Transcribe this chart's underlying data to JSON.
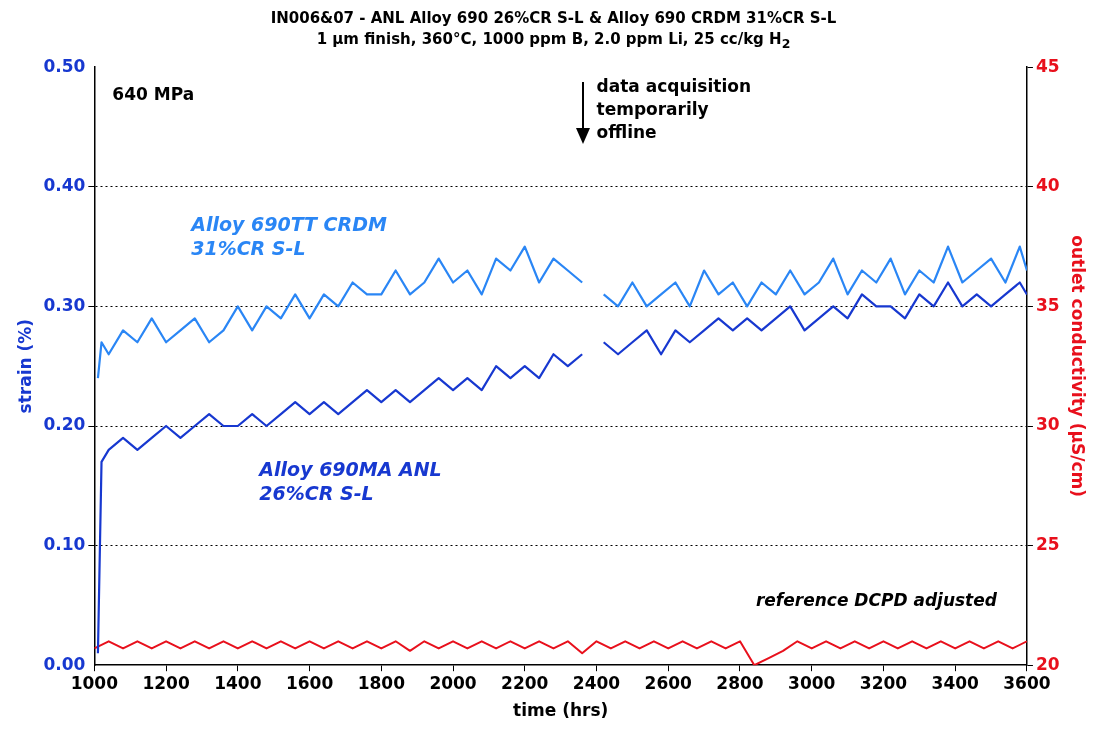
{
  "chart_data": {
    "type": "line",
    "title": "IN006&07 - ANL Alloy 690 26%CR S-L & Alloy 690 CRDM 31%CR S-L",
    "subtitle": "1 µm finish, 360°C, 1000 ppm B, 2.0 ppm Li, 25 cc/kg H$_{2}$",
    "xlabel": "time (hrs)",
    "ylabel": "strain (%)",
    "y2label": "outlet conductivity (µS/cm)",
    "xlim": [
      1000,
      3600
    ],
    "xticks": [
      1000,
      1200,
      1400,
      1600,
      1800,
      2000,
      2200,
      2400,
      2600,
      2800,
      3000,
      3200,
      3400,
      3600
    ],
    "ylim": [
      0,
      0.5
    ],
    "yticks": [
      {
        "value": 0,
        "label": "0.00"
      },
      {
        "value": 0.1,
        "label": "0.10"
      },
      {
        "value": 0.2,
        "label": "0.20"
      },
      {
        "value": 0.3,
        "label": "0.30"
      },
      {
        "value": 0.4,
        "label": "0.40"
      },
      {
        "value": 0.5,
        "label": "0.50"
      }
    ],
    "y2lim": [
      20,
      45
    ],
    "y2ticks": [
      20,
      25,
      30,
      35,
      40,
      45
    ],
    "grid": "y",
    "legend": false,
    "marker": "none",
    "annotations": [
      "640 MPa",
      "data acquisition temporarily offline",
      "reference DCPD adjusted"
    ],
    "series": [
      {
        "name": "Alloy 690TT CRDM 31%CR S-L",
        "color": "#2a86f5",
        "x": [
          1010,
          1020,
          1040,
          1080,
          1120,
          1160,
          1200,
          1240,
          1280,
          1320,
          1360,
          1400,
          1440,
          1480,
          1520,
          1560,
          1600,
          1640,
          1680,
          1720,
          1760,
          1800,
          1840,
          1880,
          1920,
          1960,
          2000,
          2040,
          2080,
          2120,
          2160,
          2200,
          2240,
          2280,
          2320,
          2360,
          2390,
          2420,
          2460,
          2500,
          2540,
          2580,
          2620,
          2660,
          2700,
          2740,
          2780,
          2820,
          2860,
          2900,
          2940,
          2980,
          3020,
          3060,
          3100,
          3140,
          3180,
          3220,
          3260,
          3300,
          3340,
          3380,
          3420,
          3460,
          3500,
          3540,
          3580,
          3600
        ],
        "values": [
          0.24,
          0.27,
          0.26,
          0.28,
          0.27,
          0.29,
          0.27,
          0.28,
          0.29,
          0.27,
          0.28,
          0.3,
          0.28,
          0.3,
          0.29,
          0.31,
          0.29,
          0.31,
          0.3,
          0.32,
          0.31,
          0.31,
          0.33,
          0.31,
          0.32,
          0.34,
          0.32,
          0.33,
          0.31,
          0.34,
          0.33,
          0.35,
          0.32,
          0.34,
          0.33,
          0.32,
          null,
          0.31,
          0.3,
          0.32,
          0.3,
          0.31,
          0.32,
          0.3,
          0.33,
          0.31,
          0.32,
          0.3,
          0.32,
          0.31,
          0.33,
          0.31,
          0.32,
          0.34,
          0.31,
          0.33,
          0.32,
          0.34,
          0.31,
          0.33,
          0.32,
          0.35,
          0.32,
          0.33,
          0.34,
          0.32,
          0.35,
          0.33
        ]
      },
      {
        "name": "Alloy 690MA ANL 26%CR S-L",
        "color": "#1738d0",
        "x": [
          1010,
          1020,
          1040,
          1080,
          1120,
          1160,
          1200,
          1240,
          1280,
          1320,
          1360,
          1400,
          1440,
          1480,
          1520,
          1560,
          1600,
          1640,
          1680,
          1720,
          1760,
          1800,
          1840,
          1880,
          1920,
          1960,
          2000,
          2040,
          2080,
          2120,
          2160,
          2200,
          2240,
          2280,
          2320,
          2360,
          2390,
          2420,
          2460,
          2500,
          2540,
          2580,
          2620,
          2660,
          2700,
          2740,
          2780,
          2820,
          2860,
          2900,
          2940,
          2980,
          3020,
          3060,
          3100,
          3140,
          3180,
          3220,
          3260,
          3300,
          3340,
          3380,
          3420,
          3460,
          3500,
          3540,
          3580,
          3600
        ],
        "values": [
          0.01,
          0.17,
          0.18,
          0.19,
          0.18,
          0.19,
          0.2,
          0.19,
          0.2,
          0.21,
          0.2,
          0.2,
          0.21,
          0.2,
          0.21,
          0.22,
          0.21,
          0.22,
          0.21,
          0.22,
          0.23,
          0.22,
          0.23,
          0.22,
          0.23,
          0.24,
          0.23,
          0.24,
          0.23,
          0.25,
          0.24,
          0.25,
          0.24,
          0.26,
          0.25,
          0.26,
          null,
          0.27,
          0.26,
          0.27,
          0.28,
          0.26,
          0.28,
          0.27,
          0.28,
          0.29,
          0.28,
          0.29,
          0.28,
          0.29,
          0.3,
          0.28,
          0.29,
          0.3,
          0.29,
          0.31,
          0.3,
          0.3,
          0.29,
          0.31,
          0.3,
          0.32,
          0.3,
          0.31,
          0.3,
          0.31,
          0.32,
          0.31
        ]
      },
      {
        "color": "#e8101c",
        "axis": "y2",
        "x": [
          1000,
          1040,
          1080,
          1120,
          1160,
          1200,
          1240,
          1280,
          1320,
          1360,
          1400,
          1440,
          1480,
          1520,
          1560,
          1600,
          1640,
          1680,
          1720,
          1760,
          1800,
          1840,
          1880,
          1920,
          1960,
          2000,
          2040,
          2080,
          2120,
          2160,
          2200,
          2240,
          2280,
          2320,
          2360,
          2400,
          2440,
          2480,
          2520,
          2560,
          2600,
          2640,
          2680,
          2720,
          2760,
          2800,
          2840,
          2880,
          2920,
          2960,
          3000,
          3040,
          3080,
          3120,
          3160,
          3200,
          3240,
          3280,
          3320,
          3360,
          3400,
          3440,
          3480,
          3520,
          3560,
          3600
        ],
        "values": [
          20.7,
          21.0,
          20.7,
          21.0,
          20.7,
          21.0,
          20.7,
          21.0,
          20.7,
          21.0,
          20.7,
          21.0,
          20.7,
          21.0,
          20.7,
          21.0,
          20.7,
          21.0,
          20.7,
          21.0,
          20.7,
          21.0,
          20.6,
          21.0,
          20.7,
          21.0,
          20.7,
          21.0,
          20.7,
          21.0,
          20.7,
          21.0,
          20.7,
          21.0,
          20.5,
          21.0,
          20.7,
          21.0,
          20.7,
          21.0,
          20.7,
          21.0,
          20.7,
          21.0,
          20.7,
          21.0,
          20.0,
          20.3,
          20.6,
          21.0,
          20.7,
          21.0,
          20.7,
          21.0,
          20.7,
          21.0,
          20.7,
          21.0,
          20.7,
          21.0,
          20.7,
          21.0,
          20.7,
          21.0,
          20.7,
          21.0
        ]
      }
    ]
  }
}
